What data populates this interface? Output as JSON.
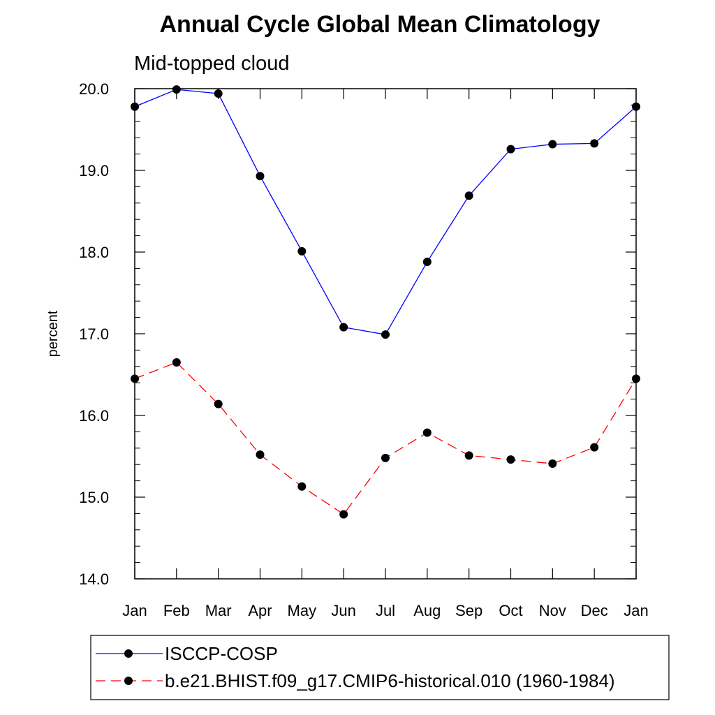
{
  "chart_data": {
    "type": "line",
    "title": "Annual Cycle Global Mean Climatology",
    "subtitle": "Mid-topped cloud",
    "xlabel": "",
    "ylabel": "percent",
    "categories": [
      "Jan",
      "Feb",
      "Mar",
      "Apr",
      "May",
      "Jun",
      "Jul",
      "Aug",
      "Sep",
      "Oct",
      "Nov",
      "Dec",
      "Jan"
    ],
    "ylim": [
      14.0,
      20.0
    ],
    "yticks": [
      "14.0",
      "15.0",
      "16.0",
      "17.0",
      "18.0",
      "19.0",
      "20.0"
    ],
    "grid": false,
    "legend_position": "bottom",
    "series": [
      {
        "name": "ISCCP-COSP",
        "color": "#0000ff",
        "line_style": "solid",
        "marker": "filled-circle",
        "values": [
          19.78,
          19.99,
          19.94,
          18.93,
          18.01,
          17.08,
          16.99,
          17.88,
          18.69,
          19.26,
          19.32,
          19.33,
          19.78
        ]
      },
      {
        "name": "b.e21.BHIST.f09_g17.CMIP6-historical.010 (1960-1984)",
        "color": "#ff0000",
        "line_style": "dashed",
        "marker": "filled-circle",
        "values": [
          16.45,
          16.65,
          16.14,
          15.52,
          15.13,
          14.79,
          15.48,
          15.79,
          15.51,
          15.46,
          15.41,
          15.61,
          16.45
        ]
      }
    ]
  }
}
